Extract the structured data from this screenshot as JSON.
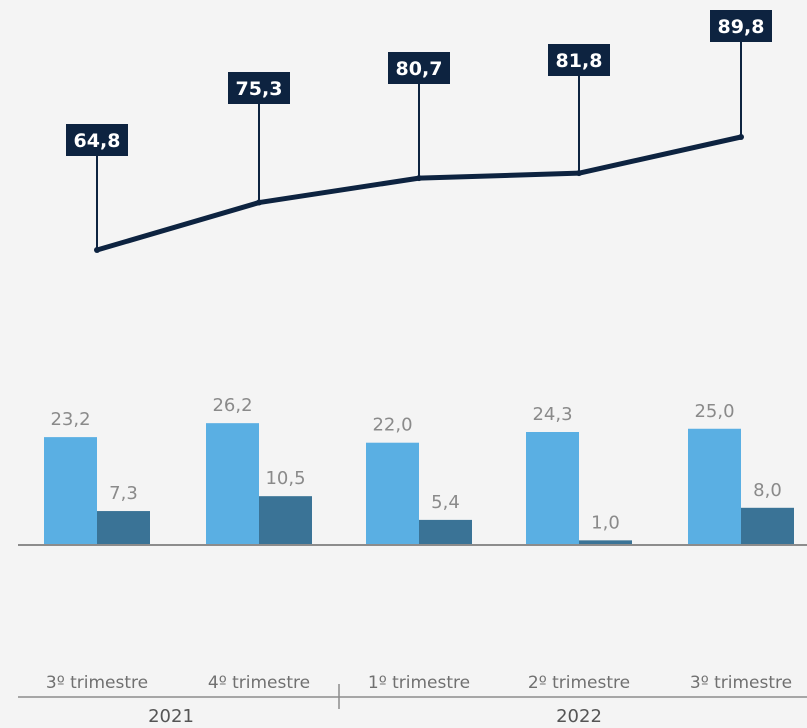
{
  "chart_data": [
    {
      "type": "line",
      "categories": [
        "3º trimestre",
        "4º trimestre",
        "1º trimestre",
        "2º trimestre",
        "3º trimestre"
      ],
      "values": [
        64.8,
        75.3,
        80.7,
        81.8,
        89.8
      ],
      "value_labels": [
        "64,8",
        "75,3",
        "80,7",
        "81,8",
        "89,8"
      ],
      "colors": {
        "line": "#0d2340",
        "label_bg": "#0d2340",
        "label_text": "#ffffff"
      }
    },
    {
      "type": "bar",
      "categories": [
        "3º trimestre",
        "4º trimestre",
        "1º trimestre",
        "2º trimestre",
        "3º trimestre"
      ],
      "series": [
        {
          "values": [
            23.2,
            26.2,
            22.0,
            24.3,
            25.0
          ],
          "labels": [
            "23,2",
            "26,2",
            "22,0",
            "24,3",
            "25,0"
          ],
          "color": "#5aafe3"
        },
        {
          "values": [
            7.3,
            10.5,
            5.4,
            1.0,
            8.0
          ],
          "labels": [
            "7,3",
            "10,5",
            "5,4",
            "1,0",
            "8,0"
          ],
          "color": "#3a7396"
        }
      ],
      "groups": [
        {
          "label": "2021",
          "categories": [
            "3º trimestre",
            "4º trimestre"
          ]
        },
        {
          "label": "2022",
          "categories": [
            "1º trimestre",
            "2º trimestre",
            "3º trimestre"
          ]
        }
      ],
      "grid": false
    }
  ]
}
